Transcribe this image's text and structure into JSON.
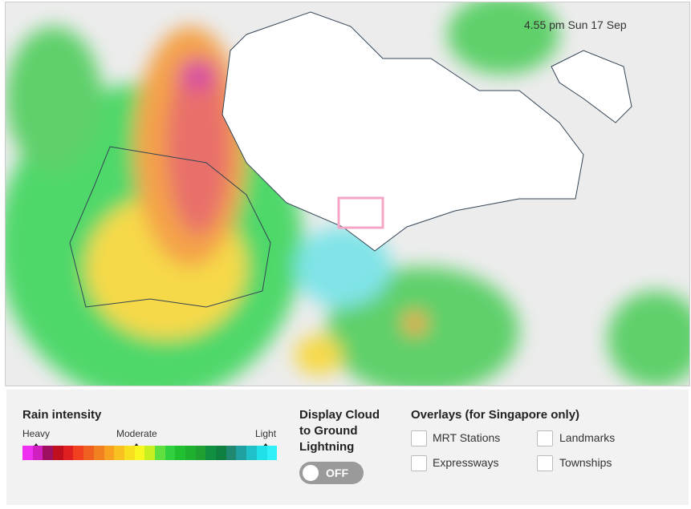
{
  "map": {
    "timestamp": "4.55 pm Sun 17 Sep"
  },
  "legend": {
    "title": "Rain intensity",
    "labels": [
      "Heavy",
      "Moderate",
      "Light"
    ]
  },
  "lightning": {
    "title": "Display Cloud to Ground Lightning",
    "toggle": "OFF"
  },
  "overlays": {
    "title": "Overlays (for Singapore only)",
    "options": [
      "MRT Stations",
      "Landmarks",
      "Expressways",
      "Townships"
    ]
  }
}
